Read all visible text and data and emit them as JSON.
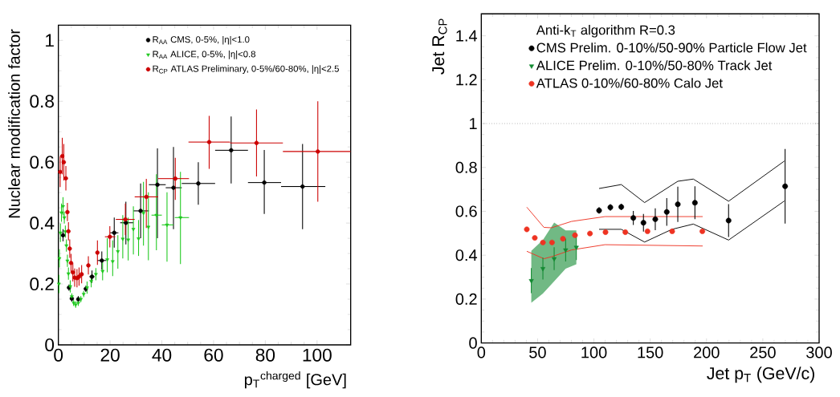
{
  "chart_data": [
    {
      "type": "scatter",
      "xlabel": "p$_{T}$$^{charged}$ [GeV]",
      "ylabel": "Nuclear modification factor",
      "xlim": [
        0,
        113
      ],
      "ylim": [
        0,
        1.05
      ],
      "xticks": [
        0,
        20,
        40,
        60,
        80,
        100
      ],
      "yticks": [
        0,
        0.2,
        0.4,
        0.6,
        0.8,
        1
      ],
      "legend": "top right",
      "series": [
        {
          "name": "R$_{AA}$ CMS, 0-5%, |η|<1.0",
          "color": "#000000",
          "marker": "circle",
          "x": [
            1.8,
            4.1,
            5.2,
            7.7,
            10.6,
            13,
            16.8,
            21.6,
            26.1,
            31.8,
            38.3,
            44.5,
            54.1,
            66.8,
            79.6,
            94.4
          ],
          "values": [
            0.36,
            0.188,
            0.152,
            0.15,
            0.184,
            0.224,
            0.277,
            0.368,
            0.401,
            0.44,
            0.526,
            0.516,
            0.53,
            0.639,
            0.533,
            0.52
          ],
          "errors": [
            0.02,
            0.01,
            0.01,
            0.01,
            0.01,
            0.02,
            0.03,
            [
              0.319,
              0.418
            ],
            [
              0.33,
              0.47
            ],
            [
              0.35,
              0.53
            ],
            [
              0.35,
              0.645
            ],
            [
              0.38,
              0.65
            ],
            [
              0.46,
              0.6
            ],
            [
              0.53,
              0.75
            ],
            [
              0.43,
              0.64
            ],
            [
              0.38,
              0.66
            ]
          ],
          "xerrors": [
            null,
            null,
            null,
            null,
            null,
            [
              12,
              14
            ],
            [
              15,
              18.5
            ],
            [
              20,
              23.2
            ],
            [
              23.9,
              29
            ],
            [
              29,
              35
            ],
            [
              35,
              41.5
            ],
            [
              41.5,
              47.7
            ],
            [
              47.7,
              60.6
            ],
            [
              60.6,
              73.3
            ],
            [
              73.3,
              86.1
            ],
            [
              86.1,
              103.2
            ]
          ]
        },
        {
          "name": "R$_{AA}$ ALICE, 0-5%, |η|<0.8",
          "color": "#1ec81e",
          "marker": "triangle",
          "x": [
            0.2,
            0.4,
            0.8,
            1.2,
            1.8,
            2.3,
            2.7,
            3.1,
            3.5,
            3.9,
            4.6,
            5.2,
            5.9,
            6.7,
            7.7,
            8.7,
            9.8,
            11.1,
            12.7,
            14.5,
            17.1,
            18.9,
            21,
            23,
            24.9,
            27,
            29,
            31,
            32.9,
            34.8,
            37.9,
            42,
            47.2
          ],
          "values": [
            0.2,
            0.284,
            0.368,
            0.434,
            0.455,
            0.418,
            0.372,
            0.326,
            0.276,
            0.234,
            0.192,
            0.159,
            0.138,
            0.132,
            0.138,
            0.15,
            0.167,
            0.188,
            0.209,
            0.232,
            0.242,
            0.28,
            0.274,
            0.307,
            0.348,
            0.345,
            0.38,
            0.349,
            0.433,
            0.387,
            0.426,
            0.394,
            0.418
          ],
          "errors": [
            0.03,
            0.03,
            0.03,
            0.03,
            0.03,
            0.02,
            0.02,
            0.02,
            0.02,
            0.02,
            0.02,
            0.01,
            0.01,
            0.01,
            0.01,
            0.01,
            0.01,
            0.02,
            0.02,
            0.02,
            0.03,
            [
              0.238,
              0.35
            ],
            [
              0.226,
              0.343
            ],
            [
              0.25,
              0.36
            ],
            [
              0.284,
              0.426
            ],
            [
              0.277,
              0.418
            ],
            [
              0.297,
              0.455
            ],
            [
              0.292,
              0.41
            ],
            [
              0.326,
              0.535
            ],
            [
              0.278,
              0.501
            ],
            [
              0.311,
              0.56
            ],
            [
              0.273,
              0.501
            ],
            [
              0.265,
              0.568
            ]
          ],
          "xerrors": [
            null,
            null,
            null,
            null,
            null,
            null,
            null,
            null,
            null,
            null,
            null,
            null,
            null,
            null,
            null,
            null,
            null,
            null,
            null,
            null,
            null,
            null,
            null,
            null,
            null,
            null,
            null,
            null,
            null,
            null,
            [
              36,
              40
            ],
            [
              40,
              44.5
            ],
            [
              45,
              50.5
            ]
          ]
        },
        {
          "name": "R$_{CP}$ ATLAS Preliminary, 0-5%/60-80%, |η|<2.5",
          "color": "#cc0000",
          "marker": "circle",
          "x": [
            0.7,
            1.5,
            2.1,
            2.9,
            3.5,
            3.9,
            4.4,
            4.9,
            5.6,
            6.3,
            7.2,
            8,
            9,
            11.6,
            15.1,
            19.9,
            25.9,
            34,
            45.2,
            58.3,
            76.6,
            100.3
          ],
          "values": [
            0.568,
            0.62,
            0.6,
            0.547,
            0.436,
            0.373,
            0.316,
            0.269,
            0.238,
            0.221,
            0.219,
            0.224,
            0.232,
            0.261,
            0.303,
            0.355,
            0.412,
            0.486,
            0.546,
            0.666,
            0.663,
            0.635
          ],
          "errors": [
            0.05,
            0.06,
            0.06,
            0.04,
            0.03,
            0.03,
            0.03,
            0.03,
            0.03,
            0.03,
            0.03,
            0.03,
            0.03,
            0.03,
            0.04,
            [
              0.32,
              0.39
            ],
            [
              0.36,
              0.464
            ],
            [
              0.384,
              0.545
            ],
            [
              0.476,
              0.614
            ],
            [
              0.578,
              0.752
            ],
            [
              0.553,
              0.773
            ],
            [
              0.47,
              0.8
            ]
          ],
          "xerrors": [
            null,
            null,
            null,
            null,
            null,
            null,
            null,
            null,
            null,
            null,
            null,
            null,
            null,
            null,
            null,
            [
              18,
              22
            ],
            [
              22.2,
              29.5
            ],
            [
              29.5,
              38.6
            ],
            [
              38.6,
              50.5
            ],
            [
              50.3,
              66.4
            ],
            [
              66.4,
              86.8
            ],
            [
              86.8,
              113
            ]
          ]
        }
      ]
    },
    {
      "type": "scatter",
      "xlabel": "Jet p$_{T}$ (GeV/c)",
      "ylabel": "Jet R$_{CP}$",
      "legend_title": "Anti-k$_{T}$ algorithm R=0.3",
      "xlim": [
        0,
        300
      ],
      "ylim": [
        0,
        1.5
      ],
      "xticks": [
        0,
        50,
        100,
        150,
        200,
        250,
        300
      ],
      "yticks": [
        0,
        0.2,
        0.4,
        0.6,
        0.8,
        1,
        1.2,
        1.4
      ],
      "legend": "top right",
      "ref_lines": [
        {
          "axis": "y",
          "value": 1,
          "line_style": "dotted",
          "color": "#000000"
        }
      ],
      "series": [
        {
          "name": "CMS Prelim. 0-10%/50-90% Particle Flow Jet",
          "color": "#000000",
          "marker": "circle",
          "x": [
            104.6,
            114.6,
            124.3,
            135,
            144,
            154.5,
            164.7,
            174.5,
            189.7,
            219.6,
            269.8
          ],
          "values": [
            0.604,
            0.618,
            0.62,
            0.57,
            0.548,
            0.564,
            0.597,
            0.632,
            0.639,
            0.558,
            0.714
          ],
          "errors": [
            0.015,
            0.015,
            0.015,
            0.032,
            0.04,
            0.05,
            0.063,
            0.08,
            0.075,
            0.075,
            0.17
          ]
        },
        {
          "name": "ALICE Prelim. 0-10%/50-80% Track Jet",
          "color": "#138a32",
          "marker": "triangle",
          "x": [
            44.4,
            54.7,
            64.7,
            74.9,
            84.4
          ],
          "values": [
            0.284,
            0.339,
            0.384,
            0.424,
            0.436
          ],
          "errors": [
            0.057,
            0.05,
            0.052,
            0.052,
            0.058
          ],
          "lower": [
            0.183,
            0.225,
            0.281,
            0.339,
            0.359
          ],
          "upper": [
            0.42,
            0.469,
            0.549,
            0.513,
            0.513
          ]
        },
        {
          "name": "ATLAS 0-10%/60-80% Calo Jet",
          "color": "#ee3322",
          "marker": "circle",
          "x": [
            40.4,
            47.5,
            54.7,
            62.8,
            72.5,
            83.2,
            96.5,
            110.3,
            127.9,
            147.6,
            169.5,
            196.3
          ],
          "values": [
            0.518,
            0.479,
            0.458,
            0.458,
            0.475,
            0.491,
            0.499,
            0.505,
            0.505,
            0.509,
            0.509,
            0.509
          ]
        },
        {
          "type": "line",
          "color": "#000000",
          "marker": "none",
          "x": [
            104.6,
            124.3,
            145,
            174.5,
            188.3,
            219.6,
            269.1
          ],
          "values": [
            0.704,
            0.722,
            0.64,
            0.737,
            0.747,
            0.646,
            0.829
          ]
        },
        {
          "type": "line",
          "color": "#000000",
          "marker": "none",
          "x": [
            104.6,
            124.3,
            145,
            169.3,
            188.3,
            219.6,
            269.1
          ],
          "values": [
            0.518,
            0.518,
            0.46,
            0.518,
            0.542,
            0.469,
            0.647
          ]
        },
        {
          "type": "line",
          "color": "#ee3322",
          "marker": "none",
          "x": [
            40.4,
            55.6,
            62.3,
            80.1,
            109.8,
            196.6
          ],
          "values": [
            0.619,
            0.527,
            0.525,
            0.554,
            0.576,
            0.576
          ]
        },
        {
          "type": "line",
          "color": "#ee3322",
          "marker": "none",
          "x": [
            40.4,
            55.6,
            62.3,
            80.1,
            109.8,
            196.6
          ],
          "values": [
            0.418,
            0.384,
            0.393,
            0.424,
            0.448,
            0.442
          ]
        }
      ]
    }
  ]
}
